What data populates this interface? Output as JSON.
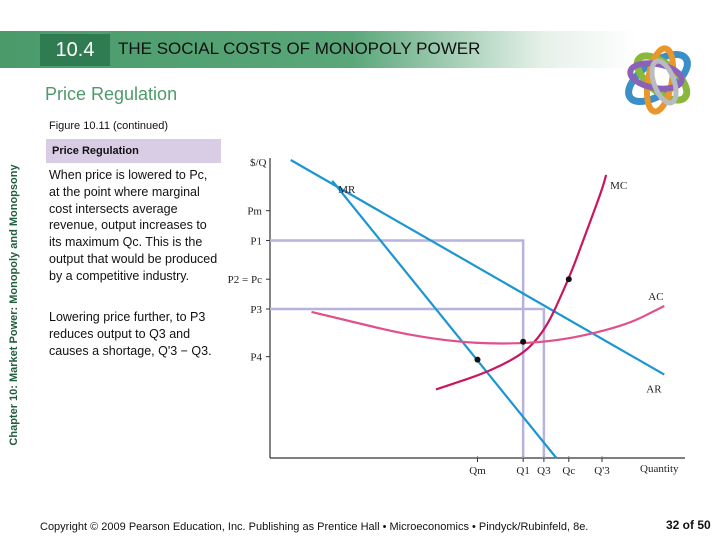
{
  "header": {
    "section_number": "10.4",
    "section_title": "THE SOCIAL COSTS OF MONOPOLY POWER"
  },
  "subtitle": "Price Regulation",
  "figure_label": "Figure 10.11 (continued)",
  "side_label": "Chapter 10: Market Power: Monopoly and Monopsony",
  "panel": {
    "title": "Price Regulation",
    "paragraph1": "When price is lowered to Pc, at the point where marginal cost intersects average revenue, output increases to its maximum Qc. This is the output that would be produced by a competitive industry.",
    "paragraph2": "Lowering price further, to P3 reduces output to Q3 and causes a shortage, Q'3 − Q3."
  },
  "footer": {
    "copyright": "Copyright © 2009 Pearson Education, Inc. Publishing as Prentice Hall • Microeconomics • Pindyck/Rubinfeld, 8e.",
    "page": "32 of 50"
  },
  "colors": {
    "header_green": "#2f7c52",
    "subtitle_green": "#4f9a6a",
    "demand_blue": "#1b96d2",
    "mc_magenta": "#c8175d",
    "ac_pink": "#e0508a",
    "price_line_lavender": "#b7b3dc",
    "panel_lavender": "#d9cde5"
  },
  "logo_icon": "interlocking-rings-logo",
  "chart_data": {
    "type": "line",
    "title": "Price Regulation",
    "xlabel": "Quantity",
    "ylabel": "$/Q",
    "x_ticks": [
      "Qm",
      "Q1",
      "Q3",
      "Qc",
      "Q'3"
    ],
    "y_ticks": [
      "Pm",
      "P1",
      "P2 = Pc",
      "P3",
      "P4"
    ],
    "xlim": [
      0,
      10
    ],
    "ylim": [
      0,
      10
    ],
    "tick_positions": {
      "Qm": 5.0,
      "Q1": 6.1,
      "Q3": 6.6,
      "Qc": 7.2,
      "Q'3": 8.0,
      "Pm": 8.3,
      "P1": 7.3,
      "P2 = Pc": 6.0,
      "P3": 5.0,
      "P4": 3.4
    },
    "series": [
      {
        "name": "AR",
        "x": [
          0.5,
          9.5
        ],
        "y": [
          10.0,
          2.8
        ]
      },
      {
        "name": "MR",
        "x": [
          1.5,
          6.9
        ],
        "y": [
          9.3,
          0.0
        ]
      },
      {
        "name": "MC",
        "x": [
          4.0,
          5.5,
          6.5,
          7.2,
          7.6,
          8.0,
          8.1
        ],
        "y": [
          2.3,
          3.0,
          3.9,
          6.0,
          7.5,
          9.0,
          9.5
        ]
      },
      {
        "name": "AC",
        "x": [
          1.0,
          4.0,
          6.5,
          8.5,
          9.5
        ],
        "y": [
          4.9,
          3.9,
          3.8,
          4.4,
          5.1
        ]
      }
    ],
    "points": [
      {
        "label": "MC = AR",
        "x": 7.2,
        "y": 6.0
      },
      {
        "label": "AC at Q3",
        "x": 6.1,
        "y": 3.9
      },
      {
        "label": "MR = MC",
        "x": 5.0,
        "y": 3.3
      }
    ],
    "price_levels": [
      {
        "name": "P1 regulated price",
        "y": 7.3,
        "to_x": 6.1
      },
      {
        "name": "P3 regulated price",
        "y": 5.0,
        "to_x": 6.6
      }
    ]
  }
}
